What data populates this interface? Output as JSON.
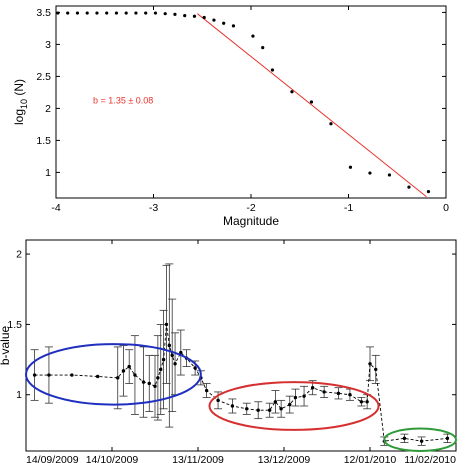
{
  "chart_data": [
    {
      "type": "scatter",
      "title": "",
      "xlabel": "Magnitude",
      "ylabel_base": "log",
      "ylabel_sub": "10",
      "ylabel_rest": " (N)",
      "xlim": [
        -4,
        0
      ],
      "ylim": [
        0.6,
        3.6
      ],
      "xticks": [
        -4,
        -3,
        -2,
        -1,
        0
      ],
      "xtick_labels": [
        "-4",
        "-3",
        "-2",
        "-1",
        "0"
      ],
      "yticks": [
        1,
        1.5,
        2,
        2.5,
        3,
        3.5
      ],
      "ytick_labels": [
        "1",
        "1.5",
        "2",
        "2.5",
        "3",
        "3.5"
      ],
      "grid": false,
      "series": [
        {
          "marker": "point",
          "color": "#000000",
          "x": [
            -3.98,
            -3.88,
            -3.78,
            -3.68,
            -3.58,
            -3.48,
            -3.38,
            -3.28,
            -3.18,
            -3.08,
            -2.98,
            -2.88,
            -2.78,
            -2.68,
            -2.58,
            -2.48,
            -2.38,
            -2.28,
            -2.18,
            -1.98,
            -1.88,
            -1.78,
            -1.58,
            -1.38,
            -1.18,
            -0.98,
            -0.78,
            -0.58,
            -0.38,
            -0.18
          ],
          "y": [
            3.49,
            3.49,
            3.49,
            3.49,
            3.49,
            3.49,
            3.49,
            3.49,
            3.49,
            3.49,
            3.49,
            3.48,
            3.47,
            3.45,
            3.44,
            3.42,
            3.38,
            3.33,
            3.29,
            3.13,
            2.95,
            2.6,
            2.26,
            2.1,
            1.76,
            1.08,
            0.99,
            0.96,
            0.77,
            0.7
          ]
        }
      ],
      "fit_line": {
        "color": "#e8322d",
        "x": [
          -2.55,
          -0.2
        ],
        "y": [
          3.48,
          0.62
        ]
      },
      "annotation": "b = 1.35 ± 0.08"
    },
    {
      "type": "line",
      "title": "",
      "xlabel": "",
      "ylabel": "b-value",
      "ylim": [
        0.6,
        2.1
      ],
      "yticks": [
        1,
        1.5,
        2
      ],
      "ytick_labels": [
        "1",
        "1.5",
        "2"
      ],
      "xticks": [
        "2009-09-14",
        "2009-10-14",
        "2009-11-13",
        "2009-12-13",
        "2010-01-12",
        "2010-02-11"
      ],
      "xtick_labels": [
        "14/09/2009",
        "14/10/2009",
        "13/11/2009",
        "13/12/2009",
        "12/01/2010",
        "11/02/2010"
      ],
      "xlim": [
        "2009-09-14",
        "2010-02-11"
      ],
      "grid": false,
      "series": [
        {
          "line_style": "dashed-with-points",
          "color": "#000000",
          "x": [
            "2009-09-17",
            "2009-09-22",
            "2009-09-30",
            "2009-10-09",
            "2009-10-16",
            "2009-10-18",
            "2009-10-20",
            "2009-10-22",
            "2009-10-25",
            "2009-10-27",
            "2009-10-29",
            "2009-10-30",
            "2009-10-31",
            "2009-11-01",
            "2009-11-02",
            "2009-11-03",
            "2009-11-04",
            "2009-11-05",
            "2009-11-07",
            "2009-11-09",
            "2009-11-12",
            "2009-11-14",
            "2009-11-16",
            "2009-11-20",
            "2009-11-25",
            "2009-11-30",
            "2009-12-04",
            "2009-12-08",
            "2009-12-10",
            "2009-12-12",
            "2009-12-15",
            "2009-12-17",
            "2009-12-20",
            "2009-12-23",
            "2009-12-27",
            "2010-01-01",
            "2010-01-05",
            "2010-01-09",
            "2010-01-11",
            "2010-01-12",
            "2010-01-14",
            "2010-01-17",
            "2010-01-24",
            "2010-01-30",
            "2010-02-08"
          ],
          "y": [
            1.14,
            1.14,
            1.14,
            1.13,
            1.12,
            1.17,
            1.2,
            1.14,
            1.09,
            1.08,
            1.06,
            1.12,
            1.18,
            1.25,
            1.5,
            1.35,
            1.28,
            1.22,
            1.3,
            1.26,
            1.19,
            1.12,
            1.03,
            0.96,
            0.92,
            0.9,
            0.89,
            0.89,
            0.95,
            0.9,
            0.93,
            0.98,
            0.99,
            1.05,
            1.02,
            1.01,
            1.0,
            0.95,
            0.95,
            1.22,
            1.18,
            0.67,
            0.69,
            0.67,
            0.69
          ],
          "err": [
            0.18,
            0.2,
            0.0,
            0.0,
            0.22,
            0.18,
            0.12,
            0.28,
            0.25,
            0.2,
            0.22,
            0.3,
            0.32,
            0.35,
            0.42,
            0.58,
            0.4,
            0.22,
            0.16,
            0.06,
            0.05,
            0.05,
            0.05,
            0.06,
            0.05,
            0.04,
            0.06,
            0.05,
            0.08,
            0.06,
            0.06,
            0.06,
            0.07,
            0.05,
            0.04,
            0.04,
            0.04,
            0.03,
            0.05,
            0.12,
            0.1,
            0.03,
            0.03,
            0.03,
            0.03
          ]
        }
      ],
      "highlight_ellipses": [
        {
          "color": "#1f2fbf",
          "x_from": "2009-09-14",
          "x_to": "2009-11-14",
          "y_from": 0.93,
          "y_to": 1.36
        },
        {
          "color": "#d62f2f",
          "x_from": "2009-11-17",
          "x_to": "2010-01-15",
          "y_from": 0.75,
          "y_to": 1.09
        },
        {
          "color": "#2f9a3a",
          "x_from": "2010-01-17",
          "x_to": "2010-02-11",
          "y_from": 0.6,
          "y_to": 0.76
        }
      ]
    }
  ]
}
